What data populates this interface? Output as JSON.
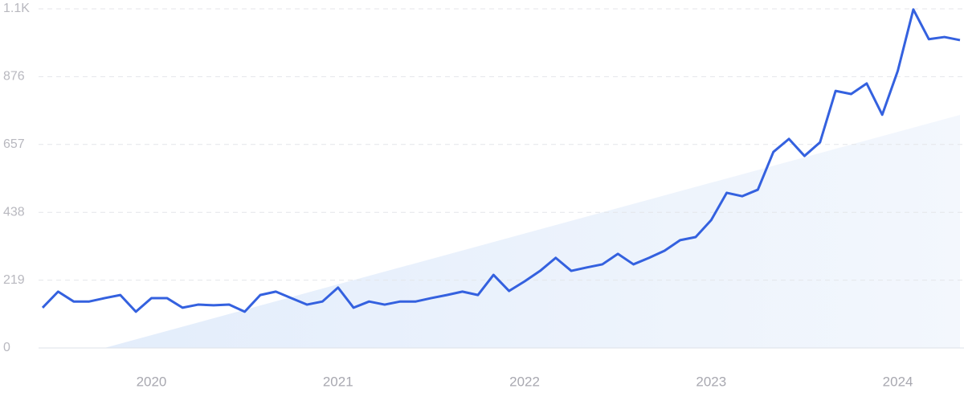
{
  "chart_data": {
    "type": "line",
    "categories": [
      null,
      null,
      null,
      null,
      null,
      null,
      null,
      "2020",
      null,
      null,
      null,
      null,
      null,
      null,
      null,
      null,
      null,
      null,
      null,
      "2021",
      null,
      null,
      null,
      null,
      null,
      null,
      null,
      null,
      null,
      null,
      null,
      "2022",
      null,
      null,
      null,
      null,
      null,
      null,
      null,
      null,
      null,
      null,
      null,
      "2023",
      null,
      null,
      null,
      null,
      null,
      null,
      null,
      null,
      null,
      null,
      null,
      "2024",
      null,
      null,
      null,
      null
    ],
    "values": [
      130,
      182,
      150,
      150,
      161,
      171,
      117,
      161,
      161,
      130,
      140,
      138,
      140,
      117,
      171,
      182,
      161,
      140,
      150,
      195,
      130,
      150,
      140,
      150,
      150,
      161,
      171,
      182,
      171,
      236,
      184,
      215,
      249,
      291,
      249,
      260,
      270,
      304,
      270,
      291,
      314,
      348,
      358,
      413,
      501,
      490,
      511,
      633,
      675,
      620,
      664,
      830,
      820,
      854,
      753,
      895,
      1093,
      997,
      1004,
      994
    ],
    "color": "#3461df",
    "ylim": [
      0,
      1095
    ],
    "yticks": [
      0,
      219,
      438,
      657,
      876,
      {
        "value": 1095,
        "label": "1.1K"
      }
    ],
    "grid": true
  }
}
